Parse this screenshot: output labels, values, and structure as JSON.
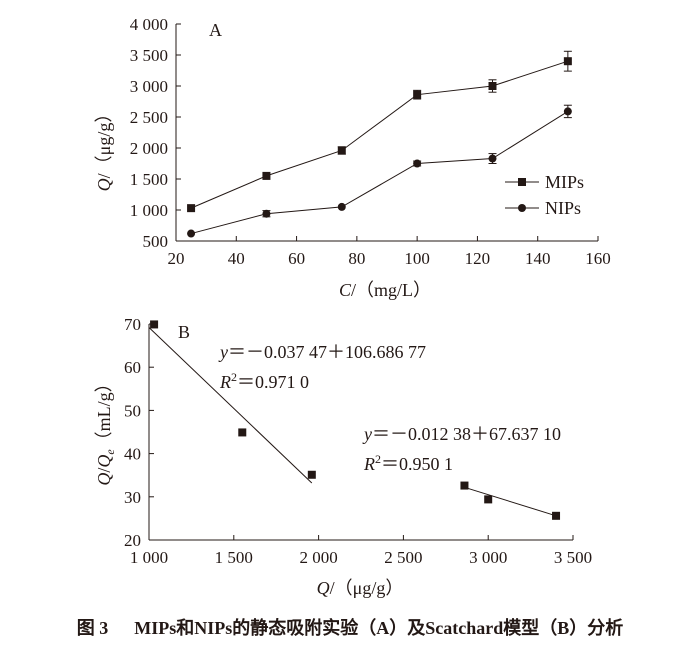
{
  "chart_data": [
    {
      "type": "line",
      "panel_label": "A",
      "xlabel_var": "C",
      "xlabel_unit": "（mg/L）",
      "ylabel_var": "Q",
      "ylabel_unit": "（μg/g）",
      "xlim": [
        20,
        160
      ],
      "ylim": [
        500,
        4000
      ],
      "xticks": [
        20,
        40,
        60,
        80,
        100,
        120,
        140,
        160
      ],
      "yticks": [
        500,
        1000,
        1500,
        2000,
        2500,
        3000,
        3500,
        4000
      ],
      "ytick_labels": [
        "500",
        "1 000",
        "1 500",
        "2 000",
        "2 500",
        "3 000",
        "3 500",
        "4 000"
      ],
      "legend_position": "right-middle",
      "series": [
        {
          "name": "MIPs",
          "marker": "square",
          "x": [
            25,
            50,
            75,
            100,
            125,
            150
          ],
          "y": [
            1030,
            1550,
            1960,
            2860,
            3000,
            3400
          ],
          "err": [
            0,
            0,
            60,
            70,
            100,
            160
          ]
        },
        {
          "name": "NIPs",
          "marker": "circle",
          "x": [
            25,
            50,
            75,
            100,
            125,
            150
          ],
          "y": [
            620,
            940,
            1050,
            1750,
            1830,
            2590
          ],
          "err": [
            0,
            50,
            0,
            40,
            80,
            100
          ]
        }
      ]
    },
    {
      "type": "scatter",
      "panel_label": "B",
      "xlabel_var": "Q",
      "xlabel_unit": "（μg/g）",
      "ylabel_var": "Q",
      "ylabel_sub": "e",
      "ylabel_unit": "（mL/g）",
      "xlim": [
        1000,
        3500
      ],
      "ylim": [
        20,
        70
      ],
      "xticks": [
        1000,
        1500,
        2000,
        2500,
        3000,
        3500
      ],
      "xtick_labels": [
        "1 000",
        "1 500",
        "2 000",
        "2 500",
        "3 000",
        "3 500"
      ],
      "yticks": [
        20,
        30,
        40,
        50,
        60,
        70
      ],
      "points": [
        {
          "x": 1030,
          "y": 69.9
        },
        {
          "x": 1550,
          "y": 44.9
        },
        {
          "x": 1960,
          "y": 35.1
        },
        {
          "x": 2860,
          "y": 32.6
        },
        {
          "x": 3000,
          "y": 29.4
        },
        {
          "x": 3400,
          "y": 25.6
        }
      ],
      "fits": [
        {
          "x_start": 1000,
          "x_end": 1960,
          "y_start": 69.2,
          "y_end": 33.2,
          "equation_prefix": "y",
          "equation_rest": "＝－0.037 47＋106.686 77",
          "r2_prefix": "R",
          "r2_rest": "＝0.971 0"
        },
        {
          "x_start": 2860,
          "x_end": 3400,
          "y_start": 32.2,
          "y_end": 25.6,
          "equation_prefix": "y",
          "equation_rest": "＝－0.012 38＋67.637 10",
          "r2_prefix": "R",
          "r2_rest": "＝0.950 1"
        }
      ]
    }
  ],
  "caption": {
    "number": "图 3",
    "text": "MIPs和NIPs的静态吸附实验（A）及Scatchard模型（B）分析"
  }
}
